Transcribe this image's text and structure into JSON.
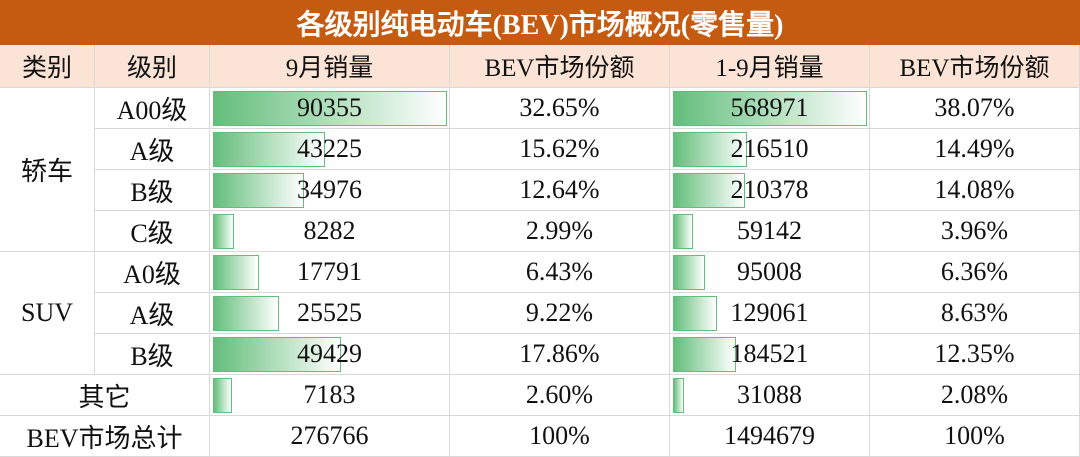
{
  "title": "各级别纯电动车(BEV)市场概况(零售量)",
  "headers": [
    "类别",
    "级别",
    "9月销量",
    "BEV市场份额",
    "1-9月销量",
    "BEV市场份额"
  ],
  "groups": [
    {
      "label": "轿车",
      "rows": [
        {
          "grade": "A00级",
          "sep": 90355,
          "sep_share": "32.65%",
          "ytd": 568971,
          "ytd_share": "38.07%"
        },
        {
          "grade": "A级",
          "sep": 43225,
          "sep_share": "15.62%",
          "ytd": 216510,
          "ytd_share": "14.49%"
        },
        {
          "grade": "B级",
          "sep": 34976,
          "sep_share": "12.64%",
          "ytd": 210378,
          "ytd_share": "14.08%"
        },
        {
          "grade": "C级",
          "sep": 8282,
          "sep_share": "2.99%",
          "ytd": 59142,
          "ytd_share": "3.96%"
        }
      ]
    },
    {
      "label": "SUV",
      "rows": [
        {
          "grade": "A0级",
          "sep": 17791,
          "sep_share": "6.43%",
          "ytd": 95008,
          "ytd_share": "6.36%"
        },
        {
          "grade": "A级",
          "sep": 25525,
          "sep_share": "9.22%",
          "ytd": 129061,
          "ytd_share": "8.63%"
        },
        {
          "grade": "B级",
          "sep": 49429,
          "sep_share": "17.86%",
          "ytd": 184521,
          "ytd_share": "12.35%"
        }
      ]
    }
  ],
  "other": {
    "label": "其它",
    "sep": 7183,
    "sep_share": "2.60%",
    "ytd": 31088,
    "ytd_share": "2.08%"
  },
  "total": {
    "label": "BEV市场总计",
    "sep": 276766,
    "sep_share": "100%",
    "ytd": 1494679,
    "ytd_share": "100%"
  }
}
